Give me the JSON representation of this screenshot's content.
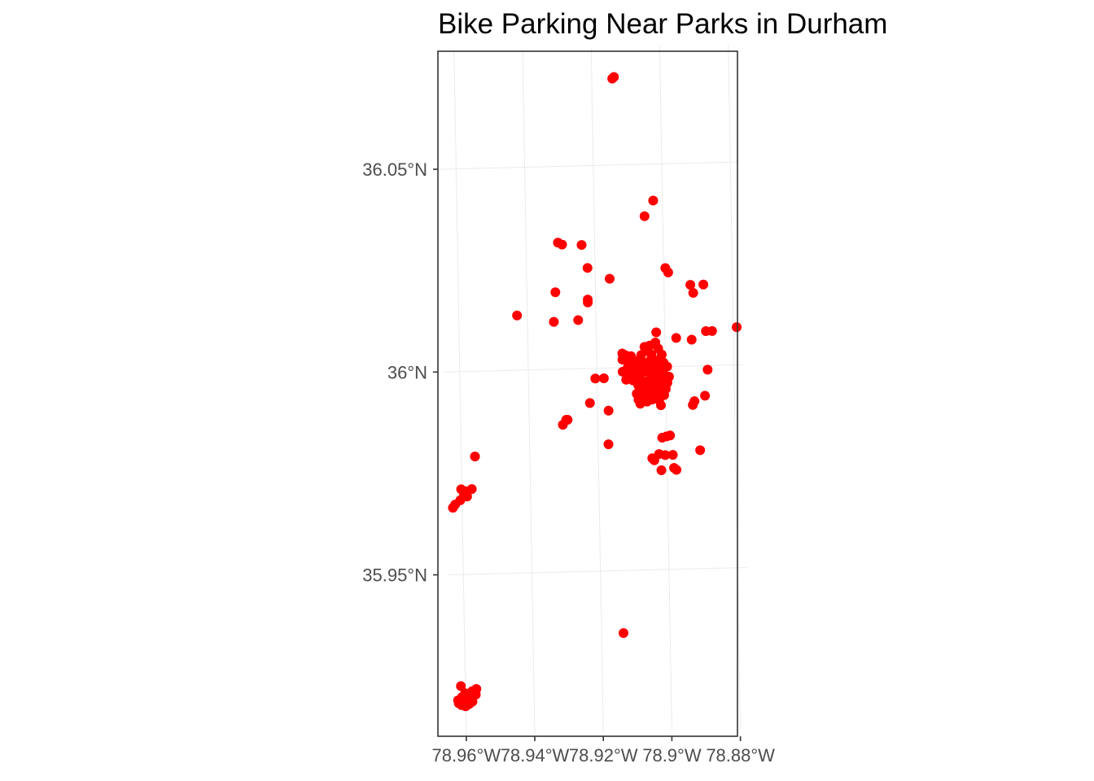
{
  "chart_data": {
    "type": "scatter",
    "title": "Bike Parking Near Parks in Durham",
    "xlabel": "",
    "ylabel": "",
    "x_ticks": [
      {
        "value": -78.96,
        "label": "78.96°W"
      },
      {
        "value": -78.94,
        "label": "78.94°W"
      },
      {
        "value": -78.92,
        "label": "78.92°W"
      },
      {
        "value": -78.9,
        "label": "78.9°W"
      },
      {
        "value": -78.88,
        "label": "78.88°W"
      }
    ],
    "y_ticks": [
      {
        "value": 35.95,
        "label": "35.95°N"
      },
      {
        "value": 36.0,
        "label": "36°N"
      },
      {
        "value": 36.05,
        "label": "36.05°N"
      }
    ],
    "xlim": [
      -78.9647,
      -78.8773
    ],
    "ylim": [
      35.9102,
      36.0791
    ],
    "grid": true,
    "legend": "none",
    "point_color": "#ff0000",
    "points": [
      [
        -78.914,
        36.0713
      ],
      [
        -78.9135,
        36.0717
      ],
      [
        -78.9027,
        36.041
      ],
      [
        -78.9053,
        36.0372
      ],
      [
        -78.9307,
        36.0312
      ],
      [
        -78.9295,
        36.0307
      ],
      [
        -78.9238,
        36.0305
      ],
      [
        -78.9222,
        36.0248
      ],
      [
        -78.9158,
        36.022
      ],
      [
        -78.8995,
        36.0243
      ],
      [
        -78.8987,
        36.0232
      ],
      [
        -78.8923,
        36.02
      ],
      [
        -78.8885,
        36.02
      ],
      [
        -78.8915,
        36.018
      ],
      [
        -78.9317,
        36.019
      ],
      [
        -78.9223,
        36.017
      ],
      [
        -78.9223,
        36.0163
      ],
      [
        -78.943,
        36.0135
      ],
      [
        -78.9323,
        36.0117
      ],
      [
        -78.9252,
        36.012
      ],
      [
        -78.9025,
        36.0085
      ],
      [
        -78.8967,
        36.007
      ],
      [
        -78.8922,
        36.0065
      ],
      [
        -78.888,
        36.0085
      ],
      [
        -78.8862,
        36.0085
      ],
      [
        -78.879,
        36.0093
      ],
      [
        -78.9028,
        36.006
      ],
      [
        -78.9045,
        36.0053
      ],
      [
        -78.906,
        36.005
      ],
      [
        -78.902,
        36.0045
      ],
      [
        -78.905,
        36.004
      ],
      [
        -78.9125,
        36.0035
      ],
      [
        -78.9115,
        36.003
      ],
      [
        -78.91,
        36.0028
      ],
      [
        -78.907,
        36.003
      ],
      [
        -78.904,
        36.003
      ],
      [
        -78.901,
        36.003
      ],
      [
        -78.9125,
        36.002
      ],
      [
        -78.9105,
        36.0015
      ],
      [
        -78.9085,
        36.0015
      ],
      [
        -78.9065,
        36.0012
      ],
      [
        -78.9045,
        36.0015
      ],
      [
        -78.9025,
        36.0015
      ],
      [
        -78.9005,
        36.001
      ],
      [
        -78.8995,
        36.0
      ],
      [
        -78.911,
        36.0
      ],
      [
        -78.909,
        36.0
      ],
      [
        -78.907,
        36.0
      ],
      [
        -78.905,
        36.0
      ],
      [
        -78.903,
        36.0
      ],
      [
        -78.901,
        36.0
      ],
      [
        -78.9125,
        35.999
      ],
      [
        -78.9105,
        35.9985
      ],
      [
        -78.9085,
        35.9985
      ],
      [
        -78.9065,
        35.9988
      ],
      [
        -78.9045,
        35.9985
      ],
      [
        -78.9025,
        35.9985
      ],
      [
        -78.9005,
        35.998
      ],
      [
        -78.899,
        35.9975
      ],
      [
        -78.9115,
        35.997
      ],
      [
        -78.9095,
        35.9968
      ],
      [
        -78.9075,
        35.997
      ],
      [
        -78.9055,
        35.9965
      ],
      [
        -78.9035,
        35.9968
      ],
      [
        -78.9015,
        35.9965
      ],
      [
        -78.8995,
        35.996
      ],
      [
        -78.908,
        35.9955
      ],
      [
        -78.906,
        35.995
      ],
      [
        -78.904,
        35.995
      ],
      [
        -78.902,
        35.995
      ],
      [
        -78.9,
        35.9945
      ],
      [
        -78.9085,
        35.9935
      ],
      [
        -78.9065,
        35.9935
      ],
      [
        -78.9045,
        35.9935
      ],
      [
        -78.9025,
        35.993
      ],
      [
        -78.9005,
        35.993
      ],
      [
        -78.908,
        35.992
      ],
      [
        -78.906,
        35.9922
      ],
      [
        -78.904,
        35.992
      ],
      [
        -78.902,
        35.9918
      ],
      [
        -78.9075,
        35.991
      ],
      [
        -78.9055,
        35.9915
      ],
      [
        -78.9015,
        35.9905
      ],
      [
        -78.9205,
        35.9975
      ],
      [
        -78.918,
        35.9975
      ],
      [
        -78.8877,
        35.999
      ],
      [
        -78.8886,
        35.9926
      ],
      [
        -78.8917,
        35.9913
      ],
      [
        -78.8922,
        35.9904
      ],
      [
        -78.9222,
        35.9915
      ],
      [
        -78.9168,
        35.9895
      ],
      [
        -78.9302,
        35.9863
      ],
      [
        -78.9292,
        35.9875
      ],
      [
        -78.9288,
        35.9875
      ],
      [
        -78.917,
        35.9812
      ],
      [
        -78.899,
        35.983
      ],
      [
        -78.9,
        35.9828
      ],
      [
        -78.9013,
        35.9825
      ],
      [
        -78.8903,
        35.9792
      ],
      [
        -78.9023,
        35.9785
      ],
      [
        -78.9005,
        35.9782
      ],
      [
        -78.8983,
        35.9782
      ],
      [
        -78.9043,
        35.9775
      ],
      [
        -78.9037,
        35.977
      ],
      [
        -78.898,
        35.975
      ],
      [
        -78.8973,
        35.9745
      ],
      [
        -78.9017,
        35.9745
      ],
      [
        -78.956,
        35.979
      ],
      [
        -78.9571,
        35.971
      ],
      [
        -78.959,
        35.9705
      ],
      [
        -78.9602,
        35.971
      ],
      [
        -78.9594,
        35.9695
      ],
      [
        -78.9585,
        35.9692
      ],
      [
        -78.9605,
        35.9683
      ],
      [
        -78.962,
        35.9673
      ],
      [
        -78.9627,
        35.9665
      ],
      [
        -78.9136,
        35.9346
      ],
      [
        -78.9613,
        35.9225
      ],
      [
        -78.9568,
        35.9217
      ],
      [
        -78.958,
        35.9212
      ],
      [
        -78.9601,
        35.9207
      ],
      [
        -78.959,
        35.9202
      ],
      [
        -78.961,
        35.9198
      ],
      [
        -78.9585,
        35.9195
      ],
      [
        -78.9622,
        35.919
      ],
      [
        -78.9602,
        35.9188
      ],
      [
        -78.962,
        35.9183
      ],
      [
        -78.959,
        35.918
      ],
      [
        -78.9612,
        35.9178
      ],
      [
        -78.96,
        35.9175
      ],
      [
        -78.958,
        35.9186
      ],
      [
        -78.957,
        35.9203
      ]
    ]
  }
}
